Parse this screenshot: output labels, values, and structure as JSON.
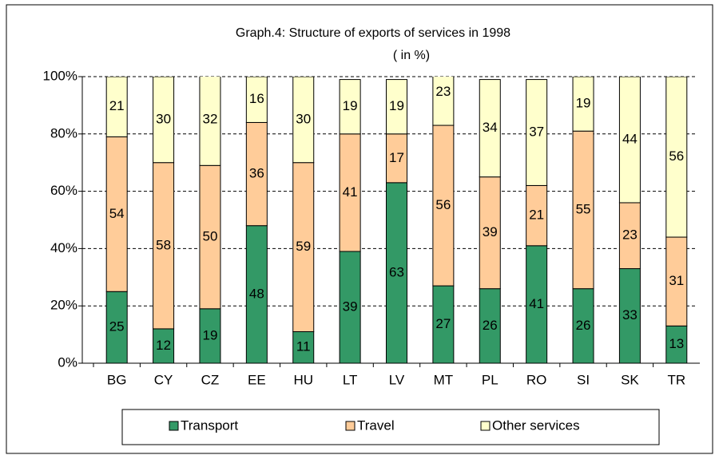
{
  "chart_data": {
    "type": "stacked_bar",
    "title": "Graph.4:  Structure of exports of services in 1998",
    "subtitle": "( in %)",
    "categories": [
      "BG",
      "CY",
      "CZ",
      "EE",
      "HU",
      "LT",
      "LV",
      "MT",
      "PL",
      "RO",
      "SI",
      "SK",
      "TR"
    ],
    "series": [
      {
        "name": "Transport",
        "color": "#339966",
        "values": [
          25,
          12,
          19,
          48,
          11,
          39,
          63,
          27,
          26,
          41,
          26,
          33,
          13
        ]
      },
      {
        "name": "Travel",
        "color": "#ffcc99",
        "values": [
          54,
          58,
          50,
          36,
          59,
          41,
          17,
          56,
          39,
          21,
          55,
          23,
          31
        ]
      },
      {
        "name": "Other services",
        "color": "#ffffcc",
        "values": [
          21,
          30,
          32,
          16,
          30,
          19,
          19,
          23,
          34,
          37,
          19,
          44,
          56
        ]
      }
    ],
    "ylim": [
      0,
      100
    ],
    "yticks": [
      {
        "value": 0,
        "label": "0%"
      },
      {
        "value": 20,
        "label": "20%"
      },
      {
        "value": 40,
        "label": "40%"
      },
      {
        "value": 60,
        "label": "60%"
      },
      {
        "value": 80,
        "label": "80%"
      },
      {
        "value": 100,
        "label": "100%"
      }
    ],
    "grid": true,
    "legend": "bottom"
  }
}
